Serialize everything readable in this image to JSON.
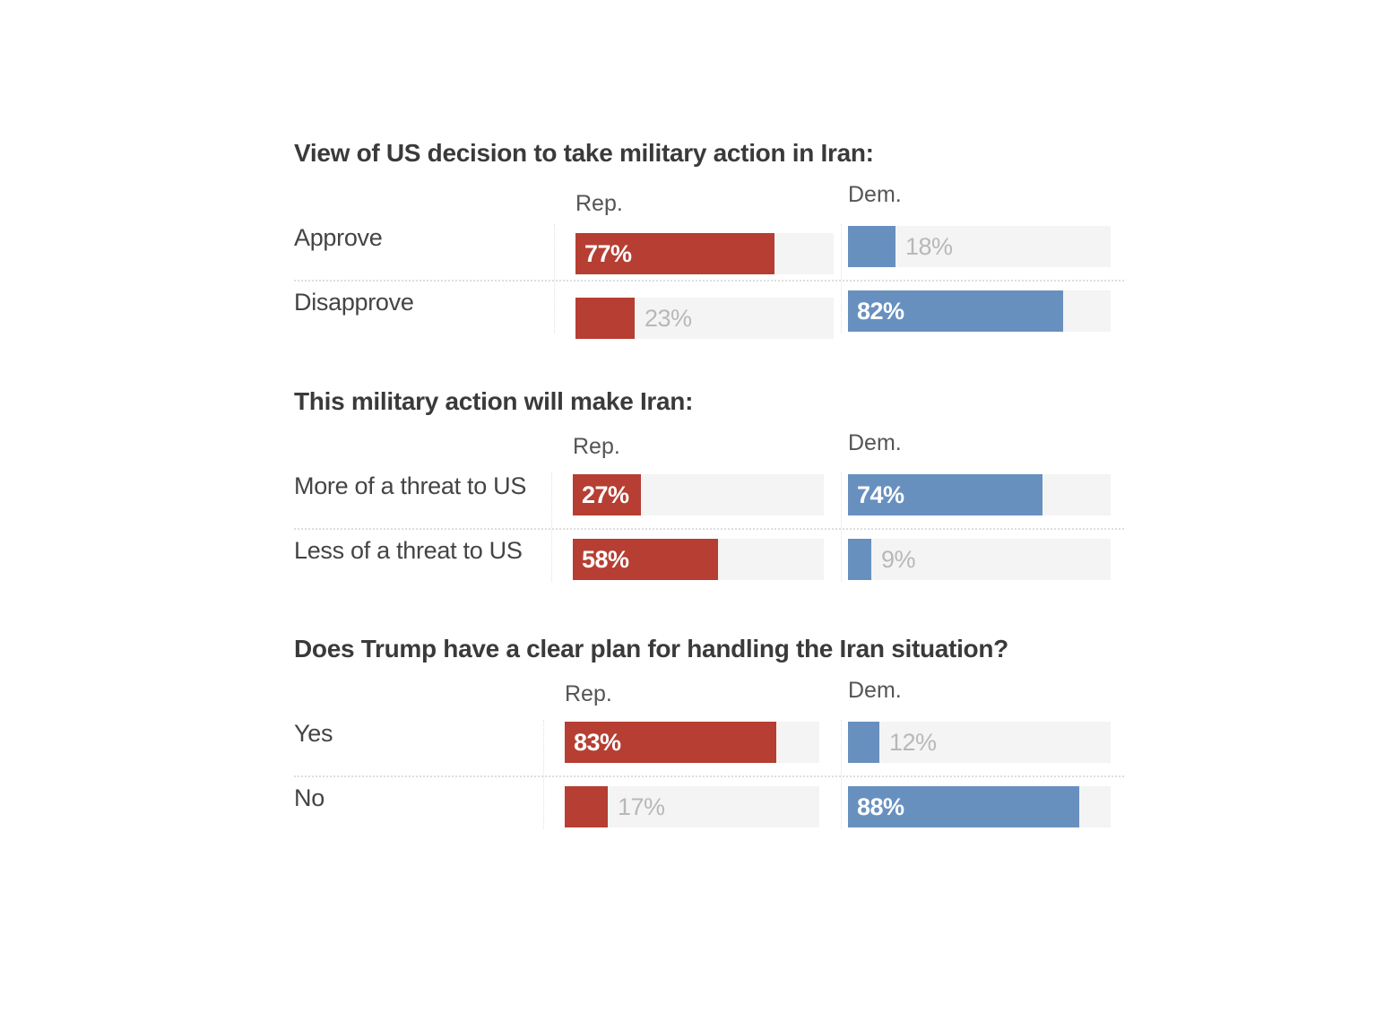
{
  "chart_data": [
    {
      "type": "bar",
      "title": "View of US decision to take military action in Iran:",
      "categories": [
        "Approve",
        "Disapprove"
      ],
      "series": [
        {
          "name": "Rep.",
          "values": [
            77,
            23
          ]
        },
        {
          "name": "Dem.",
          "values": [
            18,
            82
          ]
        }
      ],
      "unit": "%",
      "xlim": [
        0,
        100
      ]
    },
    {
      "type": "bar",
      "title": "This military action will make Iran:",
      "categories": [
        "More of a threat to US",
        "Less of a threat to US"
      ],
      "series": [
        {
          "name": "Rep.",
          "values": [
            27,
            58
          ]
        },
        {
          "name": "Dem.",
          "values": [
            74,
            9
          ]
        }
      ],
      "unit": "%",
      "xlim": [
        0,
        100
      ]
    },
    {
      "type": "bar",
      "title": "Does Trump have a clear plan for handling the Iran situation?",
      "categories": [
        "Yes",
        "No"
      ],
      "series": [
        {
          "name": "Rep.",
          "values": [
            83,
            17
          ]
        },
        {
          "name": "Dem.",
          "values": [
            12,
            88
          ]
        }
      ],
      "unit": "%",
      "xlim": [
        0,
        100
      ]
    }
  ],
  "colors": {
    "rep": "#b63e32",
    "dem": "#6890bf",
    "track": "#f4f4f4"
  }
}
